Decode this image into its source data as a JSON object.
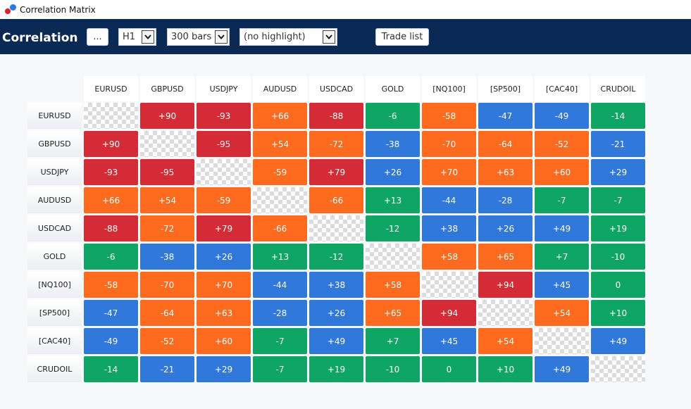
{
  "window": {
    "title": "Correlation Matrix"
  },
  "toolbar": {
    "brand": "Correlation",
    "more_label": "...",
    "timeframe": "H1",
    "bars": "300 bars",
    "highlight": "(no highlight)",
    "trade_list_label": "Trade list"
  },
  "colors": {
    "strong_positive": "#d52b36",
    "moderate": "#fe6b1f",
    "weak": "#0fa565",
    "negative": "#3178db"
  },
  "matrix": {
    "symbols": [
      "EURUSD",
      "GBPUSD",
      "USDJPY",
      "AUDUSD",
      "USDCAD",
      "GOLD",
      "[NQ100]",
      "[SP500]",
      "[CAC40]",
      "CRUDOIL"
    ],
    "values": [
      [
        "",
        "+90",
        "-93",
        "+66",
        "-88",
        "-6",
        "-58",
        "-47",
        "-49",
        "-14"
      ],
      [
        "+90",
        "",
        "-95",
        "+54",
        "-72",
        "-38",
        "-70",
        "-64",
        "-52",
        "-21"
      ],
      [
        "-93",
        "-95",
        "",
        "-59",
        "+79",
        "+26",
        "+70",
        "+63",
        "+60",
        "+29"
      ],
      [
        "+66",
        "+54",
        "-59",
        "",
        "-66",
        "+13",
        "-44",
        "-28",
        "-7",
        "-7"
      ],
      [
        "-88",
        "-72",
        "+79",
        "-66",
        "",
        "-12",
        "+38",
        "+26",
        "+49",
        "+19"
      ],
      [
        "-6",
        "-38",
        "+26",
        "+13",
        "-12",
        "",
        "+58",
        "+65",
        "+7",
        "-10"
      ],
      [
        "-58",
        "-70",
        "+70",
        "-44",
        "+38",
        "+58",
        "",
        "+94",
        "+45",
        "0"
      ],
      [
        "-47",
        "-64",
        "+63",
        "-28",
        "+26",
        "+65",
        "+94",
        "",
        "+54",
        "+10"
      ],
      [
        "-49",
        "-52",
        "+60",
        "-7",
        "+49",
        "+7",
        "+45",
        "+54",
        "",
        "+49"
      ],
      [
        "-14",
        "-21",
        "+29",
        "-7",
        "+19",
        "-10",
        "0",
        "+10",
        "+49",
        ""
      ]
    ],
    "cell_colors": [
      [
        "",
        "#d52b36",
        "#d52b36",
        "#fe6b1f",
        "#d52b36",
        "#0fa565",
        "#fe6b1f",
        "#3178db",
        "#3178db",
        "#0fa565"
      ],
      [
        "#d52b36",
        "",
        "#d52b36",
        "#fe6b1f",
        "#fe6b1f",
        "#3178db",
        "#fe6b1f",
        "#fe6b1f",
        "#fe6b1f",
        "#3178db"
      ],
      [
        "#d52b36",
        "#d52b36",
        "",
        "#fe6b1f",
        "#d52b36",
        "#3178db",
        "#fe6b1f",
        "#fe6b1f",
        "#fe6b1f",
        "#3178db"
      ],
      [
        "#fe6b1f",
        "#fe6b1f",
        "#fe6b1f",
        "",
        "#fe6b1f",
        "#0fa565",
        "#3178db",
        "#3178db",
        "#0fa565",
        "#0fa565"
      ],
      [
        "#d52b36",
        "#fe6b1f",
        "#d52b36",
        "#fe6b1f",
        "",
        "#0fa565",
        "#3178db",
        "#3178db",
        "#3178db",
        "#0fa565"
      ],
      [
        "#0fa565",
        "#3178db",
        "#3178db",
        "#0fa565",
        "#0fa565",
        "",
        "#fe6b1f",
        "#fe6b1f",
        "#0fa565",
        "#0fa565"
      ],
      [
        "#fe6b1f",
        "#fe6b1f",
        "#fe6b1f",
        "#3178db",
        "#3178db",
        "#fe6b1f",
        "",
        "#d52b36",
        "#3178db",
        "#0fa565"
      ],
      [
        "#3178db",
        "#fe6b1f",
        "#fe6b1f",
        "#3178db",
        "#3178db",
        "#fe6b1f",
        "#d52b36",
        "",
        "#fe6b1f",
        "#0fa565"
      ],
      [
        "#3178db",
        "#fe6b1f",
        "#fe6b1f",
        "#0fa565",
        "#3178db",
        "#0fa565",
        "#3178db",
        "#fe6b1f",
        "",
        "#3178db"
      ],
      [
        "#0fa565",
        "#3178db",
        "#3178db",
        "#0fa565",
        "#0fa565",
        "#0fa565",
        "#0fa565",
        "#0fa565",
        "#3178db",
        ""
      ]
    ]
  }
}
